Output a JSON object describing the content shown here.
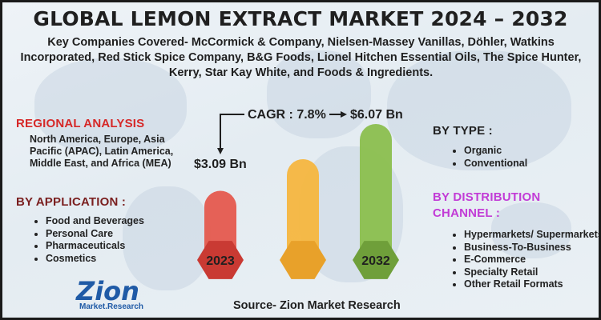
{
  "title": "GLOBAL LEMON EXTRACT MARKET 2024 – 2032",
  "companies": "Key Companies Covered- McCormick & Company, Nielsen-Massey Vanillas, Döhler, Watkins Incorporated, Red Stick Spice Company, B&G Foods, Lionel Hitchen Essential Oils, The Spice Hunter, Kerry, Star Kay White, and Foods & Ingredients.",
  "regional": {
    "heading": "REGIONAL ANALYSIS",
    "text": "North America, Europe, Asia Pacific (APAC), Latin America, Middle East, and Africa (MEA)"
  },
  "application": {
    "heading": "BY APPLICATION :",
    "items": [
      "Food and Beverages",
      "Personal Care",
      "Pharmaceuticals",
      "Cosmetics"
    ]
  },
  "type": {
    "heading": "BY TYPE :",
    "items": [
      "Organic",
      "Conventional"
    ]
  },
  "distribution": {
    "heading_line1": "BY DISTRIBUTION",
    "heading_line2": "CHANNEL :",
    "items": [
      "Hypermarkets/ Supermarkets",
      "Business-To-Business",
      "E-Commerce",
      "Specialty Retail",
      "Other Retail Formats"
    ]
  },
  "cagr": "CAGR : 7.8%",
  "value_start": "$3.09 Bn",
  "value_end": "$6.07 Bn",
  "source": "Source- Zion Market Research",
  "logo": {
    "main": "Zion",
    "sub": "Market.Research"
  },
  "chart_data": {
    "type": "bar",
    "categories": [
      "2023",
      "",
      "2032"
    ],
    "values": [
      3.09,
      4.5,
      6.07
    ],
    "title": "",
    "colors": [
      "#e55a4e",
      "#f5b63f",
      "#8bbf4e"
    ],
    "base_colors": [
      "#c93a33",
      "#e8a12a",
      "#6f9f3a"
    ]
  }
}
